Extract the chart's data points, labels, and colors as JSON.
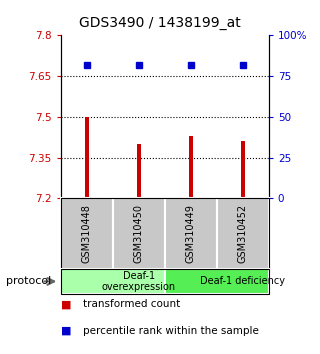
{
  "title": "GDS3490 / 1438199_at",
  "samples": [
    "GSM310448",
    "GSM310450",
    "GSM310449",
    "GSM310452"
  ],
  "bar_values": [
    7.5,
    7.4,
    7.43,
    7.41
  ],
  "percentile_values": [
    82,
    82,
    82,
    82
  ],
  "ylim_left": [
    7.2,
    7.8
  ],
  "ylim_right": [
    0,
    100
  ],
  "yticks_left": [
    7.2,
    7.35,
    7.5,
    7.65,
    7.8
  ],
  "ytick_labels_left": [
    "7.2",
    "7.35",
    "7.5",
    "7.65",
    "7.8"
  ],
  "yticks_right": [
    0,
    25,
    50,
    75,
    100
  ],
  "ytick_labels_right": [
    "0",
    "25",
    "50",
    "75",
    "100%"
  ],
  "hlines": [
    7.35,
    7.5,
    7.65
  ],
  "bar_color": "#cc0000",
  "marker_color": "#0000cc",
  "bar_width": 0.08,
  "groups": [
    {
      "label": "Deaf-1\noverexpression",
      "color": "#aaffaa",
      "start": 0,
      "end": 2
    },
    {
      "label": "Deaf-1 deficiency",
      "color": "#44ee44",
      "start": 2,
      "end": 4
    }
  ],
  "protocol_label": "protocol",
  "legend_items": [
    {
      "color": "#cc0000",
      "label": "transformed count"
    },
    {
      "color": "#0000cc",
      "label": "percentile rank within the sample"
    }
  ],
  "tick_label_color_left": "#cc0000",
  "tick_label_color_right": "#0000cc",
  "background_color": "#ffffff",
  "plot_bg_color": "#ffffff",
  "sample_bg_color": "#c8c8c8",
  "group1_color": "#aaffaa",
  "group2_color": "#55ee55"
}
